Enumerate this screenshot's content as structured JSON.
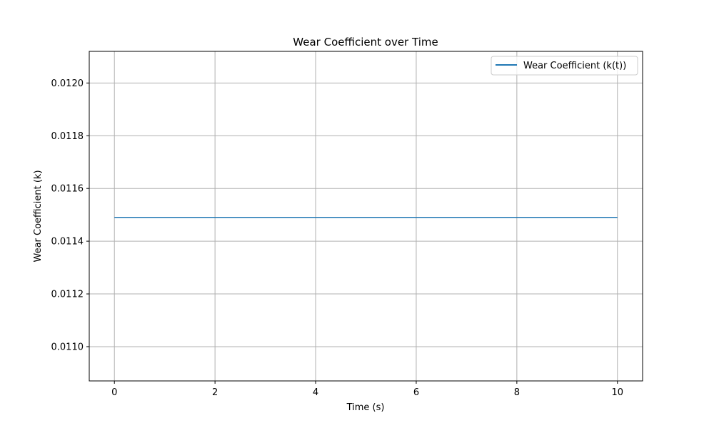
{
  "chart_data": {
    "type": "line",
    "title": "Wear Coefficient over Time",
    "xlabel": "Time (s)",
    "ylabel": "Wear Coefficient (k)",
    "xlim": [
      -0.5,
      10.5
    ],
    "ylim": [
      0.01087,
      0.01212
    ],
    "xticks": [
      0,
      2,
      4,
      6,
      8,
      10
    ],
    "xtick_labels": [
      "0",
      "2",
      "4",
      "6",
      "8",
      "10"
    ],
    "yticks": [
      0.011,
      0.0112,
      0.0114,
      0.0116,
      0.0118,
      0.012
    ],
    "ytick_labels": [
      "0.0110",
      "0.0112",
      "0.0114",
      "0.0116",
      "0.0118",
      "0.0120"
    ],
    "grid": true,
    "legend_position": "top-right",
    "series": [
      {
        "name": "Wear Coefficient (k(t))",
        "color": "#1f77b4",
        "x": [
          0,
          10
        ],
        "y": [
          0.01149,
          0.01149
        ]
      }
    ]
  }
}
